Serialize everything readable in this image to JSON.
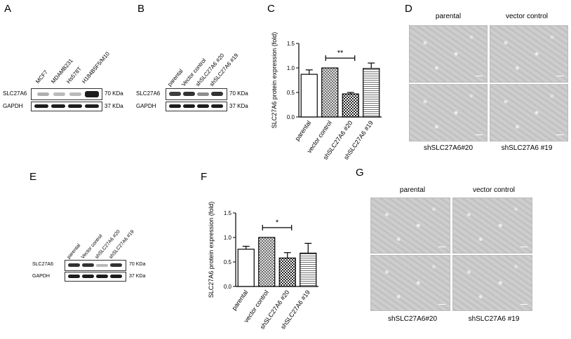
{
  "panels": {
    "A": {
      "letter": "A",
      "lanes": [
        "MCF7",
        "MDAMB231",
        "Hs578T",
        "H184B5F5/M10"
      ],
      "rows": [
        {
          "label": "SLC27A6",
          "kda": "70 KDa",
          "bands": [
            0.35,
            0.3,
            0.3,
            1.0
          ]
        },
        {
          "label": "GAPDH",
          "kda": "37 KDa",
          "bands": [
            1.0,
            1.0,
            1.0,
            1.0
          ]
        }
      ]
    },
    "B": {
      "letter": "B",
      "lanes": [
        "parental",
        "Vector control",
        "shSLC27A6 #20",
        "shSLC27A6 #19"
      ],
      "rows": [
        {
          "label": "SLC27A6",
          "kda": "70 KDa",
          "bands": [
            0.85,
            0.9,
            0.5,
            0.9
          ]
        },
        {
          "label": "GAPDH",
          "kda": "37 KDa",
          "bands": [
            1.0,
            1.0,
            1.0,
            1.0
          ]
        }
      ]
    },
    "C": {
      "letter": "C",
      "significance": "**"
    },
    "D": {
      "letter": "D",
      "labels": [
        "parental",
        "vector control",
        "shSLC27A6#20",
        "shSLC27A6 #19"
      ]
    },
    "E": {
      "letter": "E",
      "lanes": [
        "parental",
        "Vector control",
        "shSLC27A6 #20",
        "shSLC27A6 #19"
      ],
      "rows": [
        {
          "label": "SLC27A6",
          "kda": "70 KDa",
          "bands": [
            0.9,
            0.9,
            0.3,
            0.9
          ]
        },
        {
          "label": "GAPDH",
          "kda": "37 KDa",
          "bands": [
            1.0,
            1.0,
            1.0,
            1.0
          ]
        }
      ]
    },
    "F": {
      "letter": "F",
      "significance": "*"
    },
    "G": {
      "letter": "G",
      "labels": [
        "parental",
        "vector control",
        "shSLC27A6#20",
        "shSLC27A6 #19"
      ]
    }
  },
  "chart_data": [
    {
      "panel": "C",
      "type": "bar",
      "categories": [
        "parental",
        "vector control",
        "shSLC27A6 #20",
        "shSLC27A6 #19"
      ],
      "values": [
        0.87,
        1.0,
        0.47,
        0.99
      ],
      "errors": [
        0.09,
        0.0,
        0.03,
        0.11
      ],
      "ylabel": "SLC27A6 protein expression (fold)",
      "ylim": [
        0,
        1.5
      ],
      "yticks": [
        "0.0",
        "0.5",
        "1.0",
        "1.5"
      ],
      "fills": [
        "white",
        "crosshatch",
        "checker",
        "hlines"
      ],
      "significance": {
        "from": 1,
        "to": 2,
        "label": "**"
      }
    },
    {
      "panel": "F",
      "type": "bar",
      "categories": [
        "parental",
        "vector control",
        "shSLC27A6 #20",
        "shSLC27A6 #19"
      ],
      "values": [
        0.76,
        1.0,
        0.58,
        0.68
      ],
      "errors": [
        0.06,
        0.0,
        0.11,
        0.2
      ],
      "ylabel": "SLC27A6 protein expression (fold)",
      "ylim": [
        0,
        1.5
      ],
      "yticks": [
        "0.0",
        "0.5",
        "1.0",
        "1.5"
      ],
      "fills": [
        "white",
        "crosshatch",
        "checker",
        "hlines"
      ],
      "significance": {
        "from": 1,
        "to": 2,
        "label": "*"
      }
    }
  ]
}
